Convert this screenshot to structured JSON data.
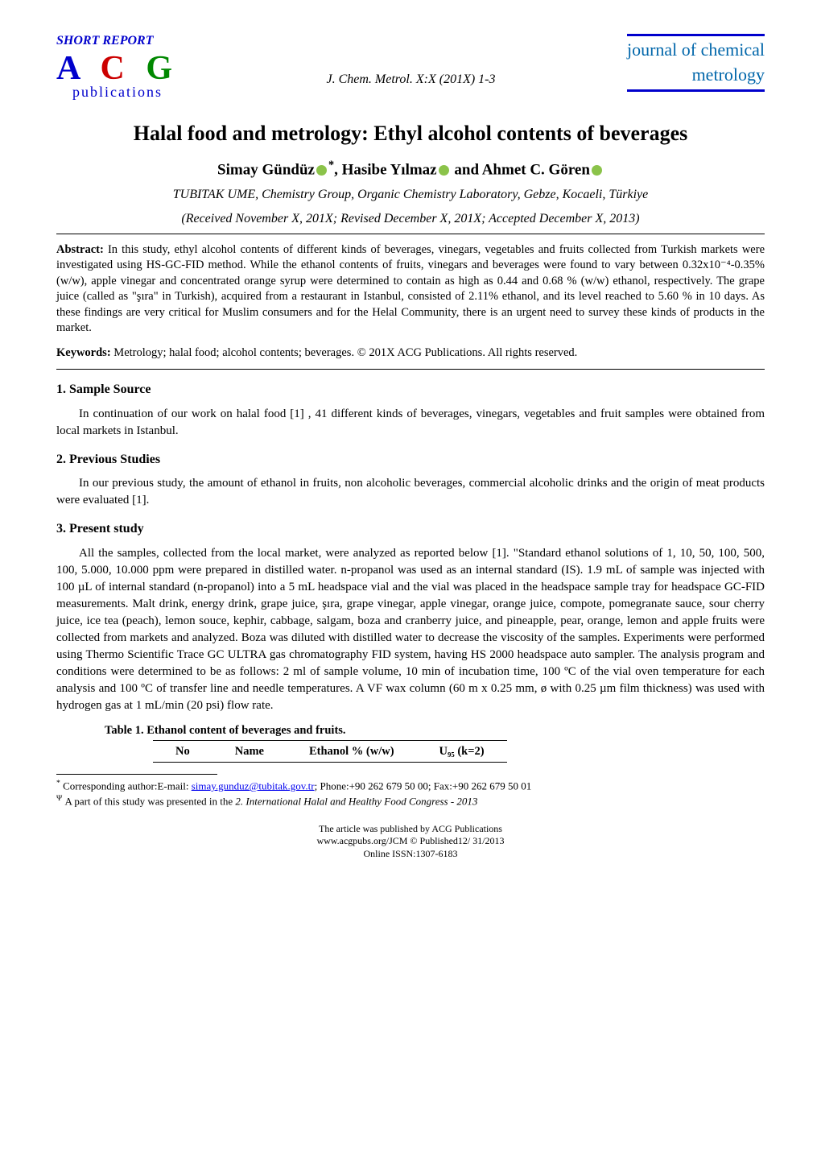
{
  "header": {
    "short_report": "SHORT REPORT",
    "short_report_color": "#0000cc",
    "logo_letters": "A C G",
    "logo_a_color": "#0000cc",
    "logo_c_color": "#cc0000",
    "logo_g_color": "#008800",
    "logo_pub": "publications",
    "logo_pub_color": "#0000cc",
    "journal_ref": "J. Chem. Metrol. X:X (201X) 1-3",
    "journal_name_line1": "journal of chemical",
    "journal_name_line2": "metrology",
    "journal_name_color": "#0066aa",
    "hr_color": "#0000cc",
    "hr_thickness": 3
  },
  "title": "Halal food and metrology: Ethyl alcohol contents of beverages",
  "authors_html": {
    "a1": "Simay Gündüz",
    "a1_sup": "*",
    "a2": ", Hasibe Yılmaz",
    "a3": " and Ahmet C. Gören",
    "orcid_color": "#8bc34a"
  },
  "affiliation": "TUBITAK UME, Chemistry Group, Organic Chemistry Laboratory, Gebze, Kocaeli, Türkiye",
  "dates": "(Received November X, 201X; Revised December X,  201X; Accepted December X, 2013)",
  "abstract": {
    "label": "Abstract:",
    "text": "In this study, ethyl alcohol contents of different kinds of beverages, vinegars, vegetables and fruits collected from Turkish markets were investigated using HS-GC-FID method.  While the ethanol contents of fruits, vinegars and beverages were found to vary between 0.32x10⁻⁴-0.35% (w/w), apple vinegar and concentrated orange syrup were determined to contain as high as 0.44 and 0.68 % (w/w) ethanol, respectively. The grape juice (called as \"şıra\" in Turkish), acquired from a restaurant in Istanbul, consisted of 2.11% ethanol, and its level reached to 5.60 % in 10 days. As these findings are very critical for Muslim consumers and for the Helal Community, there is an urgent need to survey these kinds of products in the market."
  },
  "keywords": {
    "label": "Keywords:",
    "text": "Metrology; halal food; alcohol contents; beverages.  © 201X ACG Publications. All rights reserved."
  },
  "sections": {
    "s1_heading": "1. Sample Source",
    "s1_text": "In continuation of our work on halal food [1] , 41 different kinds of beverages, vinegars, vegetables and fruit samples were obtained from local markets in Istanbul.",
    "s2_heading": "2. Previous Studies",
    "s2_text": "In our previous study, the amount of ethanol in fruits, non alcoholic beverages, commercial alcoholic drinks and the origin of meat products were evaluated [1].",
    "s3_heading": "3. Present study",
    "s3_text": "All the samples, collected from the local market, were analyzed as reported below [1]. \"Standard ethanol solutions of 1, 10, 50, 100, 500, 100, 5.000, 10.000 ppm were prepared in distilled water.  n-propanol was used as an internal standard (IS).  1.9 mL of sample was injected with 100 µL of internal standard (n-propanol) into a 5 mL headspace vial and the vial was placed in the headspace sample tray for headspace GC-FID measurements. Malt drink, energy drink, grape juice, şıra, grape vinegar, apple vinegar, orange juice, compote, pomegranate sauce, sour cherry juice, ice tea (peach), lemon souce, kephir, cabbage, salgam, boza and cranberry juice, and pineapple, pear, orange, lemon and apple fruits were collected from markets and analyzed. Boza was diluted with distilled water to decrease the viscosity of the samples. Experiments were performed using Thermo Scientific Trace GC ULTRA gas chromatography FID system, having HS 2000 headspace auto sampler. The analysis program and conditions were determined to be as follows: 2 ml of sample volume, 10 min of incubation time, 100 ºC of the vial oven temperature for each analysis and 100 ºC of transfer line and needle temperatures. A VF wax column (60 m x 0.25 mm, ø with 0.25 µm film thickness) was used with hydrogen gas at 1 mL/min (20 psi) flow rate."
  },
  "table": {
    "caption": "Table 1. Ethanol content of beverages and fruits.",
    "columns": [
      "No",
      "Name",
      "Ethanol % (w/w)",
      "U₉₅ (k=2)"
    ]
  },
  "footnotes": {
    "f1_marker": "*",
    "f1_text_a": " Corresponding author:E-mail: ",
    "f1_email": "simay.gunduz@tubitak.gov.tr",
    "f1_email_color": "#0000ee",
    "f1_text_b": ";  Phone:+90 262 679 50 00;  Fax:+90 262 679 50 01",
    "f2_marker": "Ψ",
    "f2_text_a": " A part of this study was presented in the ",
    "f2_text_b": "2. International Halal and Healthy Food Congress - 2013"
  },
  "footer": {
    "line1": "The article was published by ACG Publications",
    "line2": "www.acgpubs.org/JCM © Published12/ 31/2013",
    "line3": "Online ISSN:1307-6183"
  }
}
